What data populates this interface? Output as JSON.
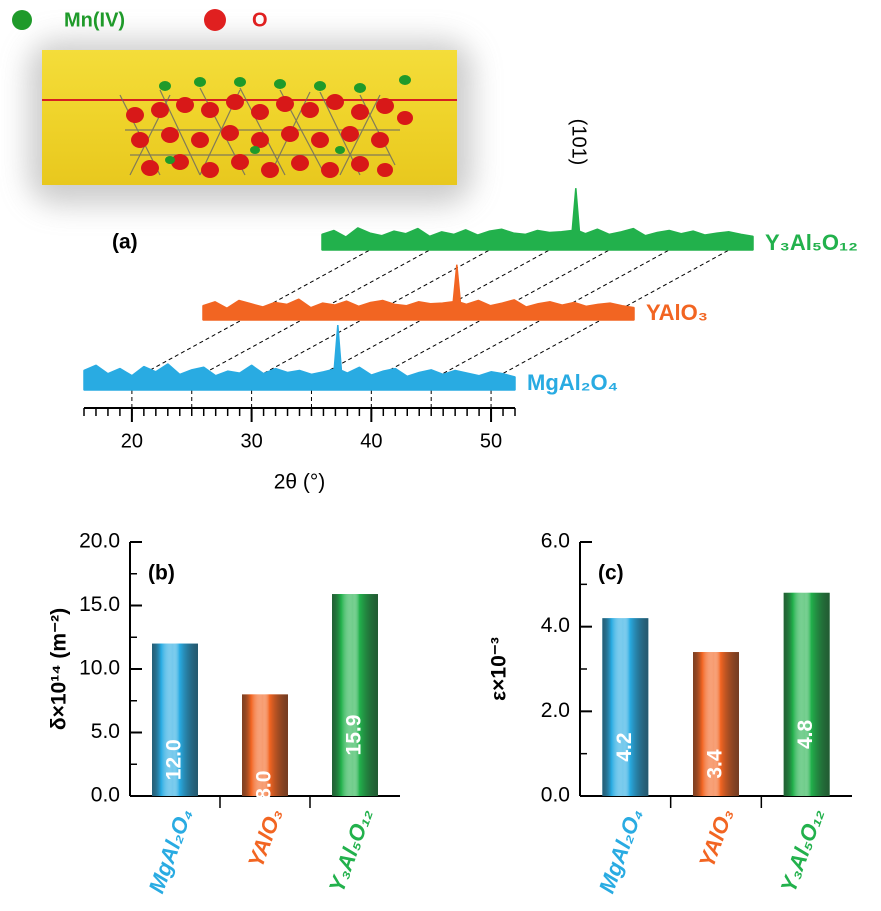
{
  "inset": {
    "labels": [
      "Mn(IV)",
      "O"
    ]
  },
  "chart_data": [
    {
      "type": "line",
      "panel": "(a)",
      "xlabel": "2θ (°)",
      "annotation": "(101)",
      "xlim": [
        16,
        52
      ],
      "xticks": [
        20,
        30,
        40,
        50
      ],
      "x": [
        16,
        17,
        18,
        19,
        20,
        21,
        22,
        23,
        24,
        25,
        26,
        27,
        28,
        29,
        30,
        31,
        32,
        33,
        34,
        35,
        36,
        36.9,
        37.2,
        37.5,
        38,
        39,
        40,
        41,
        42,
        43,
        44,
        45,
        46,
        47,
        48,
        49,
        50,
        51,
        52
      ],
      "series": [
        {
          "name": "MgAl₂O₄",
          "color": "#29abe2",
          "values": [
            30,
            38,
            25,
            33,
            22,
            36,
            28,
            40,
            24,
            31,
            35,
            22,
            29,
            26,
            38,
            25,
            33,
            27,
            30,
            24,
            28,
            32,
            100,
            30,
            26,
            35,
            23,
            29,
            33,
            21,
            27,
            31,
            24,
            30,
            26,
            22,
            28,
            25,
            20
          ]
        },
        {
          "name": "YAlO₃",
          "color": "#f26522",
          "values": [
            22,
            28,
            18,
            30,
            25,
            20,
            27,
            24,
            32,
            19,
            26,
            23,
            29,
            21,
            27,
            30,
            24,
            22,
            28,
            25,
            26,
            28,
            85,
            27,
            24,
            30,
            22,
            26,
            31,
            20,
            25,
            28,
            23,
            27,
            21,
            24,
            26,
            22,
            19
          ]
        },
        {
          "name": "Y₃Al₅O₁₂",
          "color": "#22b14c",
          "values": [
            24,
            30,
            20,
            34,
            26,
            22,
            29,
            25,
            33,
            21,
            28,
            24,
            31,
            23,
            29,
            32,
            26,
            24,
            30,
            27,
            28,
            30,
            95,
            29,
            25,
            32,
            24,
            28,
            33,
            22,
            27,
            30,
            25,
            29,
            23,
            26,
            28,
            24,
            21
          ]
        }
      ]
    },
    {
      "type": "bar",
      "panel": "(b)",
      "ylabel": "δ×10¹⁴ (m⁻²)",
      "categories": [
        "MgAl₂O₄",
        "YAlO₃",
        "Y₃Al₅O₁₂"
      ],
      "colors": [
        "#29abe2",
        "#f26522",
        "#22b14c"
      ],
      "values": [
        12.0,
        8.0,
        15.9
      ],
      "value_labels": [
        "12.0",
        "8.0",
        "15.9"
      ],
      "ylim": [
        0,
        20
      ],
      "yticks": [
        {
          "value": 0,
          "label": "0.0"
        },
        {
          "value": 5,
          "label": "5.0"
        },
        {
          "value": 10,
          "label": "10.0"
        },
        {
          "value": 15,
          "label": "15.0"
        },
        {
          "value": 20,
          "label": "20.0"
        }
      ]
    },
    {
      "type": "bar",
      "panel": "(c)",
      "ylabel": "ε×10⁻³",
      "categories": [
        "MgAl₂O₄",
        "YAlO₃",
        "Y₃Al₅O₁₂"
      ],
      "colors": [
        "#29abe2",
        "#f26522",
        "#22b14c"
      ],
      "values": [
        4.2,
        3.4,
        4.8
      ],
      "value_labels": [
        "4.2",
        "3.4",
        "4.8"
      ],
      "ylim": [
        0,
        6
      ],
      "yticks": [
        {
          "value": 0,
          "label": "0.0"
        },
        {
          "value": 2,
          "label": "2.0"
        },
        {
          "value": 4,
          "label": "4.0"
        },
        {
          "value": 6,
          "label": "6.0"
        }
      ]
    }
  ]
}
